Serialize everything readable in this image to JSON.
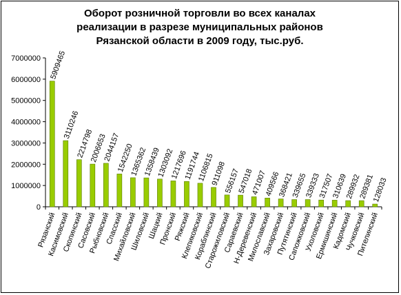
{
  "title_lines": [
    "Оборот розничной торговли во всех каналах",
    "реализации в разрезе муниципальных районов",
    "Рязанской области в 2009 году, тыс.руб."
  ],
  "colors": {
    "bar": "#99cc00",
    "bar_stroke": "#5a7a00",
    "axis": "#000000",
    "plot_bg": "#ffffff"
  },
  "chart_data": {
    "type": "bar",
    "title": "Оборот розничной торговли во всех каналах реализации в разрезе муниципальных районов Рязанской области в 2009 году, тыс.руб.",
    "xlabel": "",
    "ylabel": "",
    "ylim": [
      0,
      7000000
    ],
    "yticks": [
      0,
      1000000,
      2000000,
      3000000,
      4000000,
      5000000,
      6000000,
      7000000
    ],
    "ytick_labels": [
      "0",
      "1000000",
      "2000000",
      "3000000",
      "4000000",
      "5000000",
      "6000000",
      "7000000"
    ],
    "grid": false,
    "legend": "none",
    "categories": [
      "Рязанский",
      "Касимовский",
      "Скопинский",
      "Сасовский",
      "Рыбновский",
      "Спасский",
      "Михайловский",
      "Шиловский",
      "Шацкий",
      "Пронский",
      "Ряжский",
      "Клепиковский",
      "Кораблинский",
      "Старожиловский",
      "Сараевский",
      "Н-Деревенский",
      "Милославский",
      "Захаровский",
      "Путятинский",
      "Сапожковский",
      "Ухоловский",
      "Ермишинский",
      "Кадомский",
      "Чучковский",
      "Пителинский"
    ],
    "values": [
      5909465,
      3110246,
      2214798,
      2006653,
      2044157,
      1542250,
      1365362,
      1358439,
      1303092,
      1217696,
      1191744,
      1106815,
      911098,
      556157,
      547018,
      471007,
      409566,
      368421,
      339655,
      339333,
      317507,
      310639,
      289932,
      289381,
      128033
    ],
    "data_labels": [
      "5909465",
      "3110246",
      "2214798",
      "2006653",
      "2044157",
      "1542250",
      "1365362",
      "1358439",
      "1303092",
      "1217696",
      "1191744",
      "1106815",
      "911098",
      "556157",
      "547018",
      "471007",
      "409566",
      "368421",
      "339655",
      "339333",
      "317507",
      "310639",
      "289932",
      "289381",
      "128033"
    ]
  }
}
